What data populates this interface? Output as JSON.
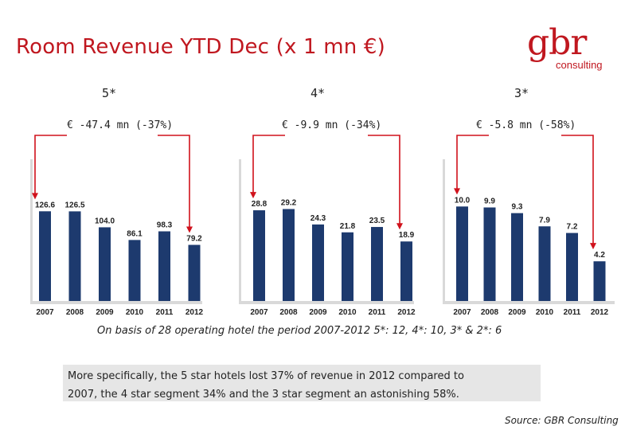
{
  "title": "Room Revenue YTD Dec (x 1 mn €)",
  "logo": {
    "big": "gbr",
    "small": "consulting"
  },
  "colors": {
    "bar": "#1d3a6e",
    "arrow": "#d0121c",
    "accent": "#c0171f",
    "axis_bg": "#d9d9d9"
  },
  "chart_data": [
    {
      "type": "bar",
      "title": "5*",
      "change_label": "€ -47.4 mn (-37%)",
      "categories": [
        "2007",
        "2008",
        "2009",
        "2010",
        "2011",
        "2012"
      ],
      "values": [
        126.6,
        126.5,
        104.0,
        86.1,
        98.3,
        79.2
      ],
      "value_labels": [
        "126.6",
        "126.5",
        "104.0",
        "86.1",
        "98.3",
        "79.2"
      ],
      "ylim": [
        0,
        200
      ]
    },
    {
      "type": "bar",
      "title": "4*",
      "change_label": "€ -9.9 mn (-34%)",
      "categories": [
        "2007",
        "2008",
        "2009",
        "2010",
        "2011",
        "2012"
      ],
      "values": [
        28.8,
        29.2,
        24.3,
        21.8,
        23.5,
        18.9
      ],
      "value_labels": [
        "28.8",
        "29.2",
        "24.3",
        "21.8",
        "23.5",
        "18.9"
      ],
      "ylim": [
        0,
        45
      ]
    },
    {
      "type": "bar",
      "title": "3*",
      "change_label": "€ -5.8 mn (-58%)",
      "categories": [
        "2007",
        "2008",
        "2009",
        "2010",
        "2011",
        "2012"
      ],
      "values": [
        10.0,
        9.9,
        9.3,
        7.9,
        7.2,
        4.2
      ],
      "value_labels": [
        "10.0",
        "9.9",
        "9.3",
        "7.9",
        "7.2",
        "4.2"
      ],
      "ylim": [
        0,
        15
      ]
    }
  ],
  "note": "On basis of 28 operating hotel the period 2007-2012 5*: 12, 4*: 10, 3* & 2*: 6",
  "summary_line1": "More specifically, the 5 star hotels lost 37% of revenue in 2012 compared to",
  "summary_line2": "2007, the 4 star segment 34% and the 3 star segment an astonishing 58%.",
  "source": "Source: GBR Consulting"
}
